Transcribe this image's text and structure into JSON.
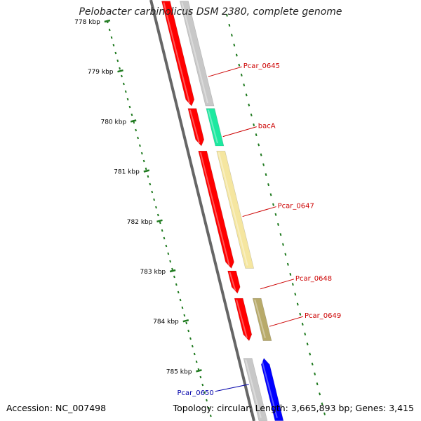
{
  "title": "Pelobacter carbinolicus DSM 2380, complete genome",
  "accession": "Accession: NC_007498",
  "summary": "Topology: circular; Length: 3,665,893 bp; Genes: 3,415",
  "colors": {
    "ruler": "#1f7a1f",
    "backbone": "#666666",
    "gene_red": "#ff0000",
    "gene_grey": "#c8c8c8",
    "gene_green": "#1de9a0",
    "gene_yellow": "#f5e6a0",
    "gene_olive": "#b8aa6a",
    "gene_blue": "#0000ff",
    "label_red": "#cc0000",
    "label_blue": "#0000aa"
  },
  "ruler_ticks": [
    {
      "label": "778 kbp",
      "kb": 778
    },
    {
      "label": "779 kbp",
      "kb": 779
    },
    {
      "label": "780 kbp",
      "kb": 780
    },
    {
      "label": "781 kbp",
      "kb": 781
    },
    {
      "label": "782 kbp",
      "kb": 782
    },
    {
      "label": "783 kbp",
      "kb": 783
    },
    {
      "label": "784 kbp",
      "kb": 784
    },
    {
      "label": "785 kbp",
      "kb": 785
    }
  ],
  "genes": [
    {
      "name": "Pcar_0645",
      "kind": "red",
      "start_kb": 777.6,
      "end_kb": 779.7,
      "strand": "+"
    },
    {
      "name": "Pcar_0645_cds",
      "kind": "grey",
      "start_kb": 777.6,
      "end_kb": 779.7,
      "strand": "+"
    },
    {
      "name": "bacA_gene",
      "kind": "red",
      "start_kb": 779.75,
      "end_kb": 780.5,
      "strand": "+"
    },
    {
      "name": "bacA",
      "kind": "green",
      "start_kb": 779.75,
      "end_kb": 780.5,
      "strand": "+"
    },
    {
      "name": "Pcar_0647_gene",
      "kind": "red",
      "start_kb": 780.6,
      "end_kb": 782.95,
      "strand": "+"
    },
    {
      "name": "Pcar_0647",
      "kind": "yellow",
      "start_kb": 780.6,
      "end_kb": 782.95,
      "strand": "+"
    },
    {
      "name": "Pcar_0648",
      "kind": "red",
      "start_kb": 783.0,
      "end_kb": 783.45,
      "strand": "+"
    },
    {
      "name": "Pcar_0649_gene",
      "kind": "red",
      "start_kb": 783.55,
      "end_kb": 784.4,
      "strand": "+"
    },
    {
      "name": "Pcar_0649",
      "kind": "olive",
      "start_kb": 783.55,
      "end_kb": 784.4,
      "strand": "+"
    },
    {
      "name": "Pcar_0650_gray",
      "kind": "grey",
      "start_kb": 784.75,
      "end_kb": 786.0,
      "strand": "-"
    },
    {
      "name": "Pcar_0650",
      "kind": "blue",
      "start_kb": 784.75,
      "end_kb": 786.0,
      "strand": "-"
    }
  ],
  "labels": [
    {
      "text": "Pcar_0645",
      "color": "red",
      "at_kb": 779.0
    },
    {
      "text": "bacA",
      "color": "red",
      "at_kb": 780.2
    },
    {
      "text": "Pcar_0647",
      "color": "red",
      "at_kb": 781.8
    },
    {
      "text": "Pcar_0648",
      "color": "red",
      "at_kb": 783.25
    },
    {
      "text": "Pcar_0649",
      "color": "red",
      "at_kb": 784.0
    },
    {
      "text": "Pcar_0650",
      "color": "blue",
      "at_kb": 785.3
    }
  ]
}
